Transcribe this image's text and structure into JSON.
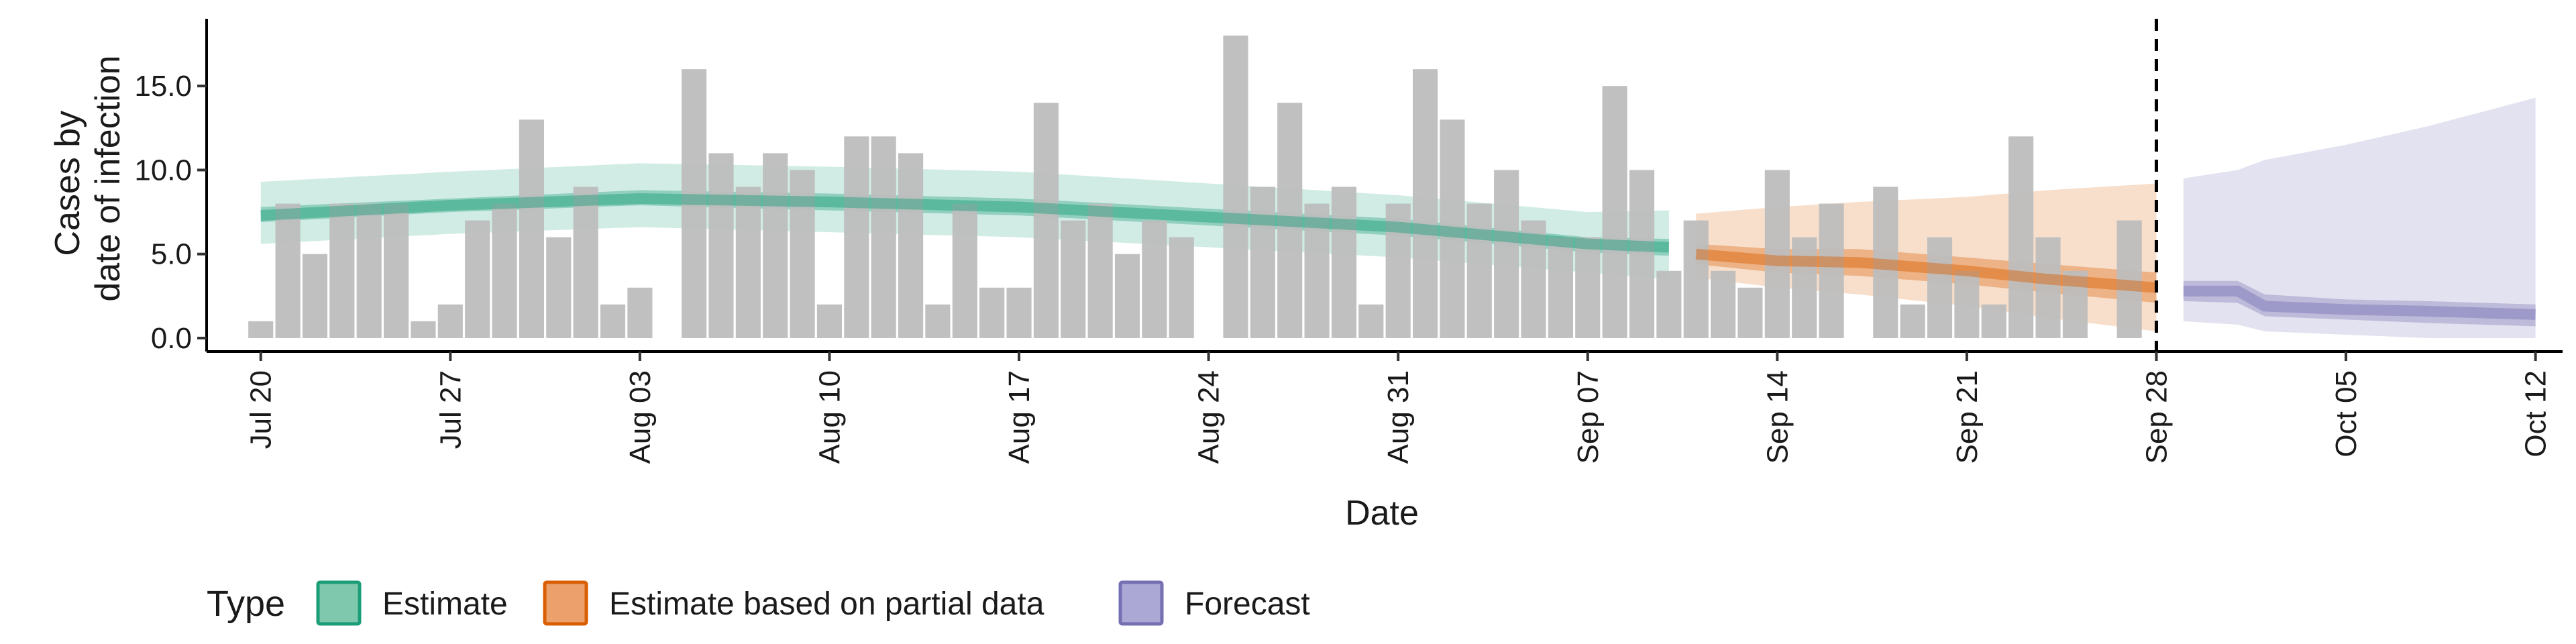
{
  "chart_data": {
    "type": "bar",
    "xlabel": "Date",
    "ylabel_lines": [
      "Cases by",
      "date of infection"
    ],
    "yticks": [
      "0.0",
      "5.0",
      "10.0",
      "15.0"
    ],
    "ylim": [
      -0.8,
      19
    ],
    "xlim": [
      "2020-07-18",
      "2020-10-13"
    ],
    "xticks": [
      {
        "date": "2020-07-20",
        "label": "Jul 20"
      },
      {
        "date": "2020-07-27",
        "label": "Jul 27"
      },
      {
        "date": "2020-08-03",
        "label": "Aug 03"
      },
      {
        "date": "2020-08-10",
        "label": "Aug 10"
      },
      {
        "date": "2020-08-17",
        "label": "Aug 17"
      },
      {
        "date": "2020-08-24",
        "label": "Aug 24"
      },
      {
        "date": "2020-08-31",
        "label": "Aug 31"
      },
      {
        "date": "2020-09-07",
        "label": "Sep 07"
      },
      {
        "date": "2020-09-14",
        "label": "Sep 14"
      },
      {
        "date": "2020-09-21",
        "label": "Sep 21"
      },
      {
        "date": "2020-09-28",
        "label": "Sep 28"
      },
      {
        "date": "2020-10-05",
        "label": "Oct 05"
      },
      {
        "date": "2020-10-12",
        "label": "Oct 12"
      }
    ],
    "reported_cases": {
      "start_date": "2020-07-20",
      "values": [
        1,
        8,
        5,
        8,
        8,
        8,
        1,
        2,
        7,
        8,
        13,
        6,
        9,
        2,
        3,
        0,
        16,
        11,
        9,
        11,
        10,
        2,
        12,
        12,
        11,
        2,
        8,
        3,
        3,
        14,
        7,
        8,
        5,
        7,
        6,
        0,
        18,
        9,
        14,
        8,
        9,
        2,
        8,
        16,
        13,
        8,
        10,
        7,
        6,
        6,
        15,
        10,
        4,
        7,
        4,
        3,
        10,
        6,
        8,
        0,
        9,
        2,
        6,
        4,
        2,
        12,
        6,
        4,
        0,
        7
      ]
    },
    "cutoff_date": "2020-09-28",
    "series": [
      {
        "name": "Estimate",
        "color": "#1b9e77",
        "x": [
          "2020-07-20",
          "2020-07-27",
          "2020-08-03",
          "2020-08-10",
          "2020-08-17",
          "2020-08-24",
          "2020-08-31",
          "2020-09-07",
          "2020-09-10"
        ],
        "median": [
          7.3,
          7.9,
          8.3,
          8.1,
          7.8,
          7.2,
          6.6,
          5.6,
          5.4
        ],
        "lower_50": [
          6.9,
          7.5,
          7.9,
          7.6,
          7.3,
          6.7,
          6.1,
          5.1,
          4.9
        ],
        "upper_50": [
          7.8,
          8.3,
          8.8,
          8.6,
          8.3,
          7.7,
          7.1,
          6.0,
          5.9
        ],
        "lower_90": [
          5.6,
          6.2,
          6.6,
          6.3,
          6.0,
          5.4,
          4.8,
          3.9,
          3.5
        ],
        "upper_90": [
          9.3,
          9.9,
          10.4,
          10.2,
          9.9,
          9.2,
          8.5,
          7.5,
          7.6
        ]
      },
      {
        "name": "Estimate based on partial data",
        "color": "#d95f02",
        "x": [
          "2020-09-11",
          "2020-09-14",
          "2020-09-17",
          "2020-09-21",
          "2020-09-24",
          "2020-09-28"
        ],
        "median": [
          5.0,
          4.6,
          4.5,
          4.0,
          3.5,
          3.0
        ],
        "lower_50": [
          4.4,
          3.9,
          3.7,
          3.2,
          2.7,
          2.1
        ],
        "upper_50": [
          5.6,
          5.3,
          5.3,
          4.8,
          4.4,
          3.9
        ],
        "lower_90": [
          3.6,
          3.0,
          2.6,
          1.9,
          1.2,
          0.4
        ],
        "upper_90": [
          7.4,
          7.8,
          8.1,
          8.4,
          8.8,
          9.2
        ]
      },
      {
        "name": "Forecast",
        "color": "#7570b3",
        "x": [
          "2020-09-29",
          "2020-10-01",
          "2020-10-02",
          "2020-10-05",
          "2020-10-08",
          "2020-10-12"
        ],
        "median": [
          2.8,
          2.8,
          1.9,
          1.7,
          1.6,
          1.4
        ],
        "lower_50": [
          2.2,
          2.1,
          1.3,
          1.1,
          0.9,
          0.7
        ],
        "upper_50": [
          3.4,
          3.4,
          2.6,
          2.3,
          2.2,
          2.0
        ],
        "lower_90": [
          1.0,
          0.8,
          0.4,
          0.2,
          0.0,
          0.0
        ],
        "upper_90": [
          9.5,
          10.0,
          10.6,
          11.5,
          12.6,
          14.3
        ]
      }
    ],
    "legend": {
      "title": "Type",
      "position": "bottom-left",
      "items": [
        {
          "label": "Estimate",
          "fill": "#7fc8ad",
          "stroke": "#1b9e77"
        },
        {
          "label": "Estimate based on partial data",
          "fill": "#eca06b",
          "stroke": "#d95f02"
        },
        {
          "label": "Forecast",
          "fill": "#aba8d6",
          "stroke": "#7570b3"
        }
      ]
    },
    "colors": {
      "bars": "#bdbdbd",
      "axis": "#000000"
    }
  }
}
